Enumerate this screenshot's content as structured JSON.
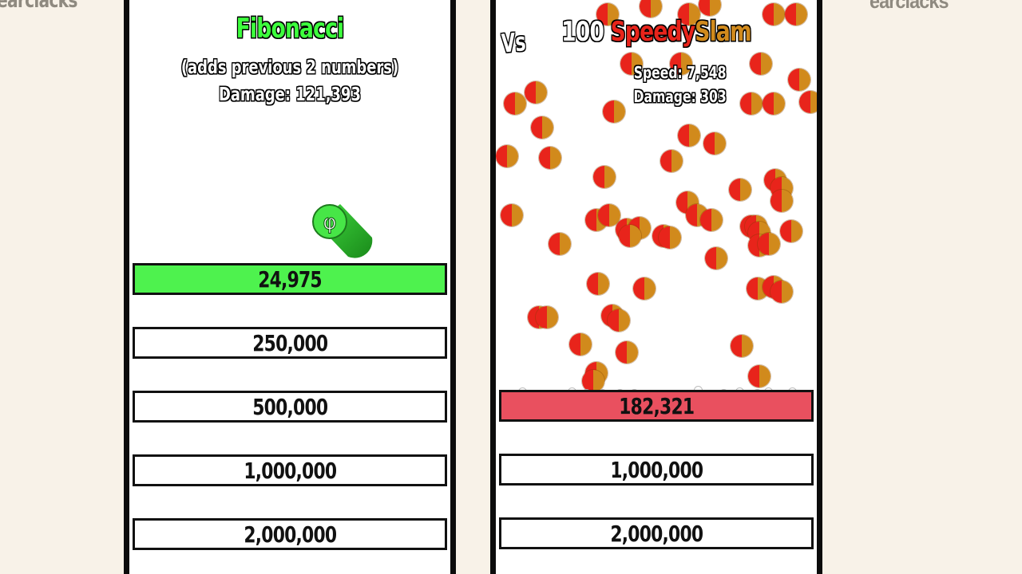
{
  "watermark": "earclacks",
  "left_panel": {
    "title": "Fibonacci",
    "subtitle": "(adds previous 2 numbers)",
    "damage": "Damage: 121,393",
    "icon_symbol": "φ",
    "bars": [
      {
        "label": "24,975",
        "active": true
      },
      {
        "label": "250,000",
        "active": false
      },
      {
        "label": "500,000",
        "active": false
      },
      {
        "label": "1,000,000",
        "active": false
      },
      {
        "label": "2,000,000",
        "active": false
      }
    ]
  },
  "right_panel": {
    "vs": "Vs",
    "title_count": "100",
    "title_name_a": "Speedy",
    "title_name_b": "Slam",
    "speed": "Speed: 7,548",
    "damage": "Damage: 303",
    "bars": [
      {
        "label": "182,321",
        "active": true
      },
      {
        "label": "1,000,000",
        "active": false
      },
      {
        "label": "2,000,000",
        "active": false
      }
    ]
  },
  "colors": {
    "background": "#f8f2e8",
    "fibonacci_green": "#3dff3d",
    "left_active_bar": "#4ef24e",
    "right_active_bar": "#e9505f",
    "ball_red": "#e8241b",
    "ball_orange": "#d18a1c"
  }
}
